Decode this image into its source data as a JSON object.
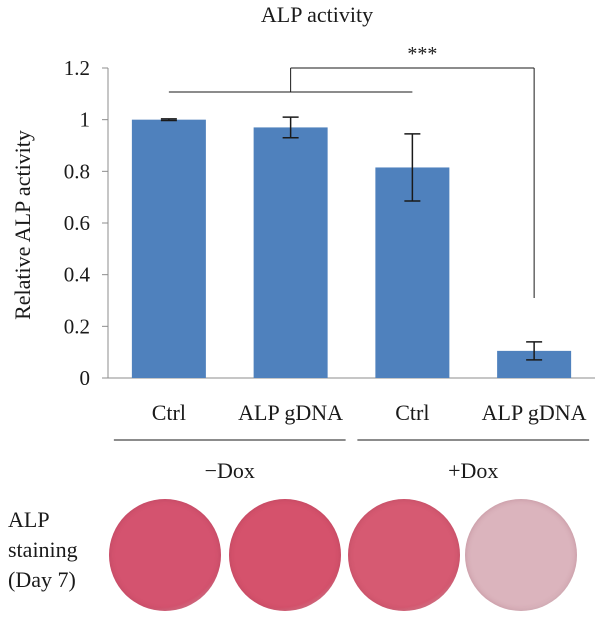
{
  "chart_data": {
    "type": "bar",
    "title": "ALP activity",
    "xlabel": "",
    "ylabel": "Relative ALP activity",
    "ylim": [
      0,
      1.2
    ],
    "yticks": [
      "0",
      "0.2",
      "0.4",
      "0.6",
      "0.8",
      "1",
      "1.2"
    ],
    "categories": [
      "Ctrl",
      "ALP gDNA",
      "Ctrl",
      "ALP gDNA"
    ],
    "values": [
      1.0,
      0.97,
      0.815,
      0.105
    ],
    "errors": [
      0.003,
      0.04,
      0.13,
      0.035
    ],
    "groups": [
      {
        "label": "−Dox",
        "categories": [
          0,
          1
        ]
      },
      {
        "label": "+Dox",
        "categories": [
          2,
          3
        ]
      }
    ],
    "significance": {
      "label": "***",
      "from": [
        0,
        1,
        2
      ],
      "to": 3
    },
    "bar_color": "#4f81bd",
    "grid": false
  },
  "staining": {
    "label_lines": [
      "ALP",
      "staining",
      "(Day 7)"
    ],
    "wells": [
      {
        "name": "ctrl-minus-dox",
        "color": "#d4536f"
      },
      {
        "name": "alp-gdna-minus-dox",
        "color": "#d5526c"
      },
      {
        "name": "ctrl-plus-dox",
        "color": "#d65a72"
      },
      {
        "name": "alp-gdna-plus-dox",
        "color": "#dbb4bd"
      }
    ]
  }
}
